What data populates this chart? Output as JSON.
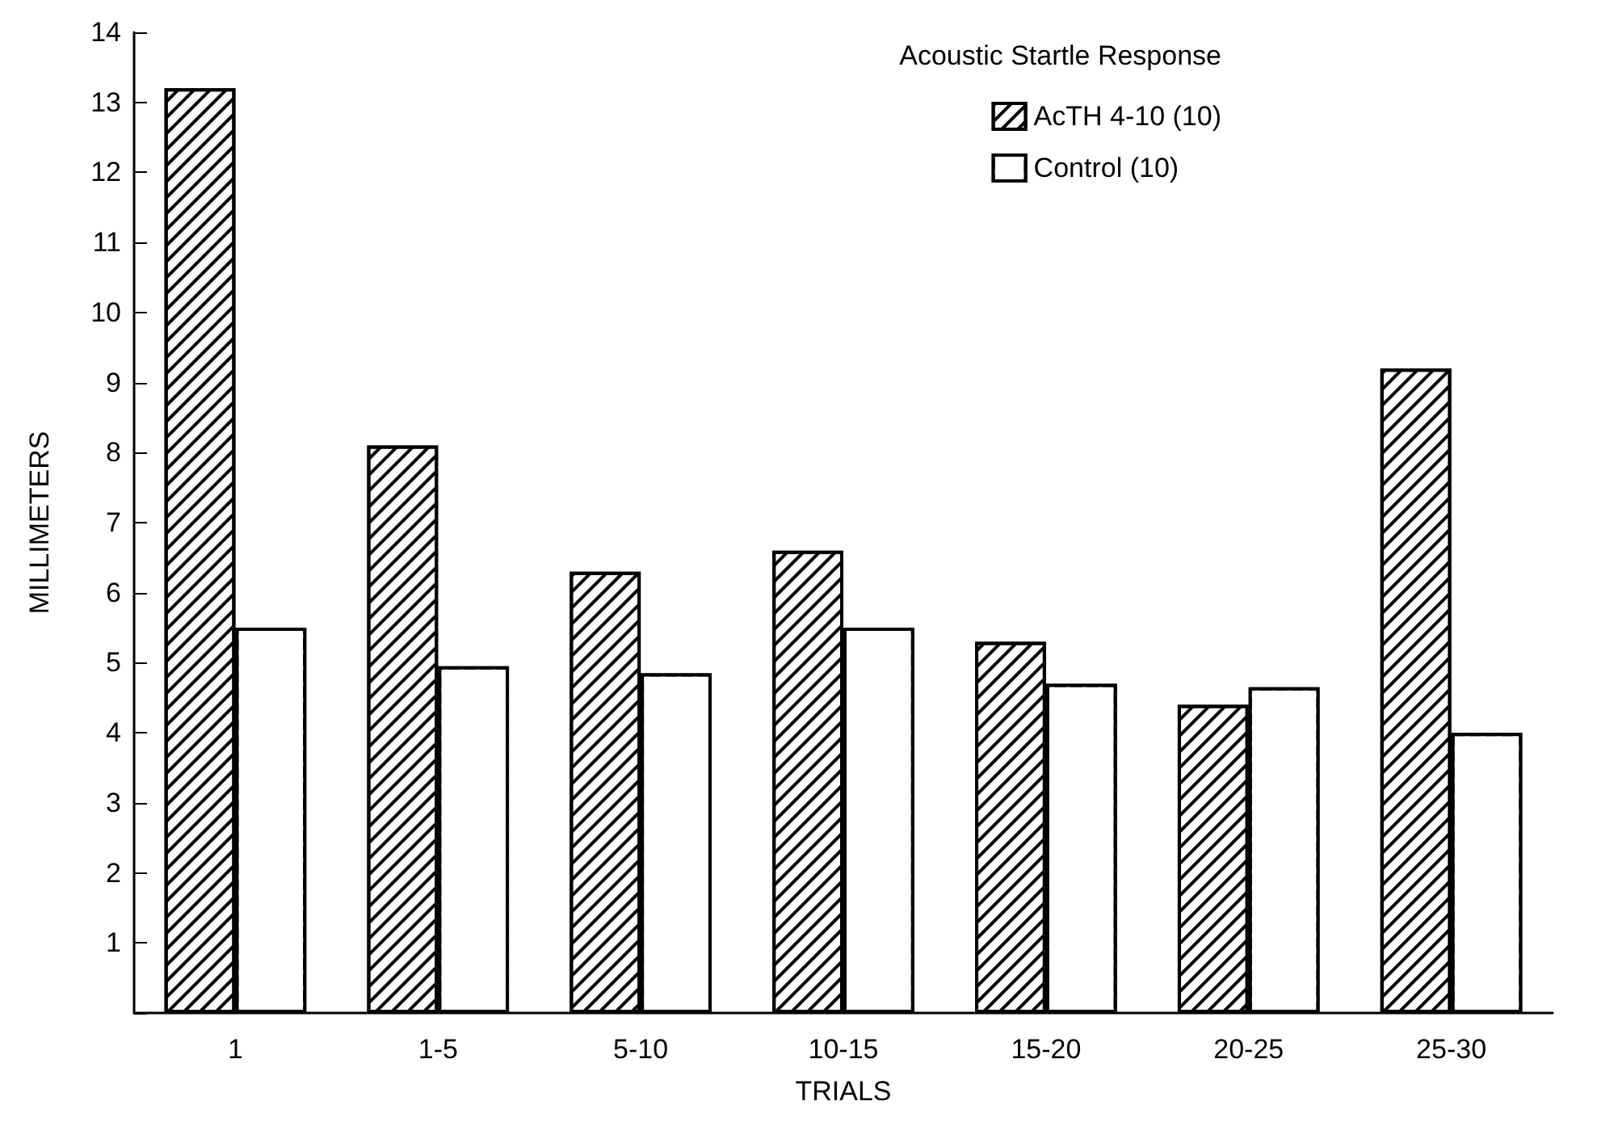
{
  "chart_data": {
    "type": "bar",
    "xlabel": "TRIALS",
    "ylabel": "MILLIMETERS",
    "legend_title": "Acoustic Startle Response",
    "legend": "top right",
    "grid": false,
    "categories": [
      "1",
      "1-5",
      "5-10",
      "10-15",
      "15-20",
      "20-25",
      "25-30"
    ],
    "ylim": [
      0,
      14
    ],
    "yticks": [
      {
        "value": 0,
        "label": null
      },
      1,
      2,
      3,
      4,
      5,
      6,
      7,
      8,
      9,
      10,
      11,
      12,
      13,
      14
    ],
    "series": [
      {
        "name": "AcTH 4-10 (10)",
        "color": "#000000",
        "values": [
          13.2,
          8.1,
          6.3,
          6.6,
          5.3,
          4.4,
          9.2
        ]
      },
      {
        "name": "Control (10)",
        "color": "#ffffff",
        "values": [
          5.5,
          4.95,
          4.85,
          5.5,
          4.7,
          4.65,
          4.0
        ]
      }
    ]
  }
}
